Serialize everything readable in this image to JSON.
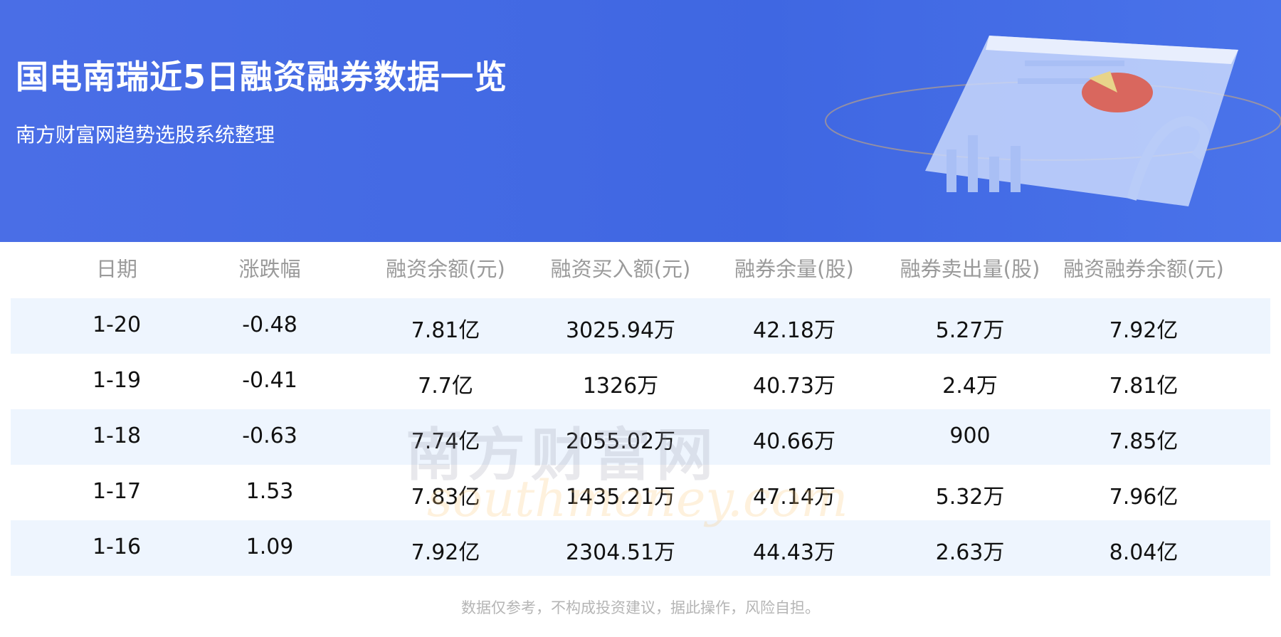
{
  "header": {
    "title": "国电南瑞近5日融资融券数据一览",
    "subtitle": "南方财富网趋势选股系统整理"
  },
  "table": {
    "columns": [
      "日期",
      "涨跌幅",
      "融资余额(元)",
      "融资买入额(元)",
      "融券余量(股)",
      "融券卖出量(股)",
      "融资融券余额(元)"
    ],
    "rows": [
      [
        "1-20",
        "-0.48",
        "7.81亿",
        "3025.94万",
        "42.18万",
        "5.27万",
        "7.92亿"
      ],
      [
        "1-19",
        "-0.41",
        "7.7亿",
        "1326万",
        "40.73万",
        "2.4万",
        "7.81亿"
      ],
      [
        "1-18",
        "-0.63",
        "7.74亿",
        "2055.02万",
        "40.66万",
        "900",
        "7.85亿"
      ],
      [
        "1-17",
        "1.53",
        "7.83亿",
        "1435.21万",
        "47.14万",
        "5.32万",
        "7.96亿"
      ],
      [
        "1-16",
        "1.09",
        "7.92亿",
        "2304.51万",
        "44.43万",
        "2.63万",
        "8.04亿"
      ]
    ]
  },
  "watermark": {
    "cn": "南方财富网",
    "en": "southmoney.com"
  },
  "footer": "数据仅参考，不构成投资建议，据此操作，风险自担。",
  "colors": {
    "banner": "#3f67e2",
    "stripe": "#eef5fe"
  }
}
